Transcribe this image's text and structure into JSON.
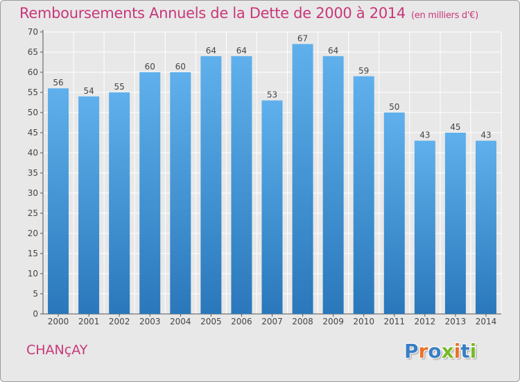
{
  "header": {
    "title": "Remboursements Annuels de la Dette de 2000 à 2014",
    "unit": "(en milliers d'€)"
  },
  "footer": {
    "commune": "CHANçAY",
    "logo": "Proxiti",
    "logo_colors": [
      "#3a7fc4",
      "#e8732a",
      "#3a7fc4",
      "#7ab929",
      "#e8732a",
      "#3a7fc4",
      "#7ab929"
    ]
  },
  "colors": {
    "title": "#c8377a",
    "bar_top": "#5fb0ec",
    "bar_bottom": "#2a78bb",
    "background": "#e8e8e8",
    "grid": "#ffffff"
  },
  "chart_data": {
    "type": "bar",
    "title": "Remboursements Annuels de la Dette de 2000 à 2014",
    "categories": [
      "2000",
      "2001",
      "2002",
      "2003",
      "2004",
      "2005",
      "2006",
      "2007",
      "2008",
      "2009",
      "2010",
      "2011",
      "2012",
      "2013",
      "2014"
    ],
    "values": [
      56,
      54,
      55,
      60,
      60,
      64,
      64,
      53,
      67,
      64,
      59,
      50,
      43,
      45,
      43
    ],
    "ylim": [
      0,
      70
    ],
    "ytick_step": 5,
    "grid": true,
    "data_labels": true
  }
}
